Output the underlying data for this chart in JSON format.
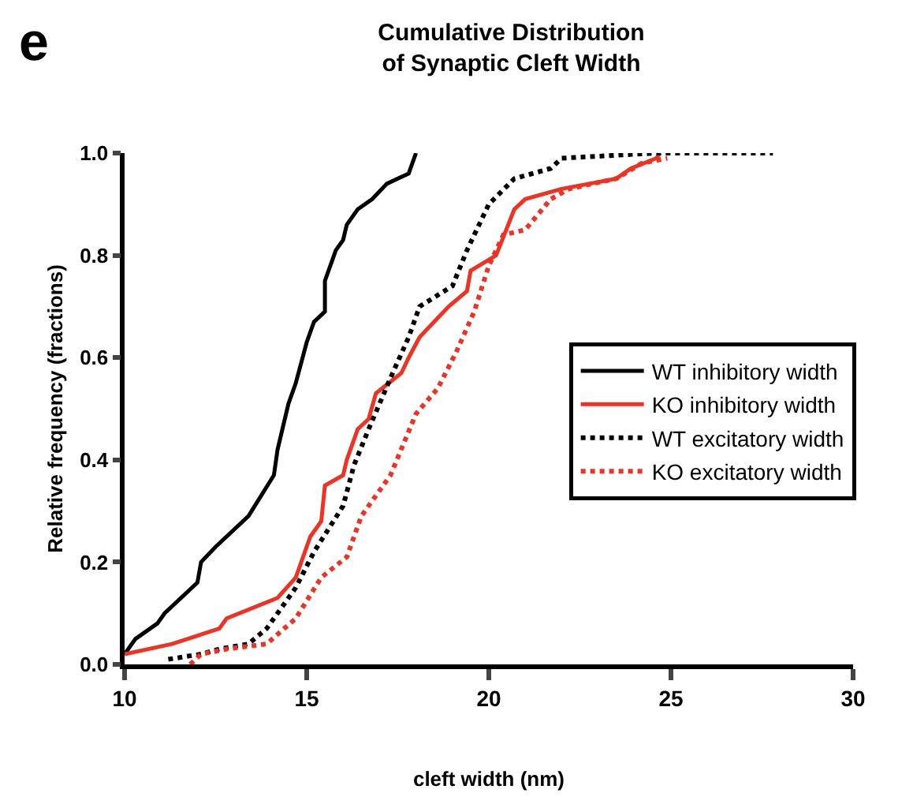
{
  "chart_data": {
    "type": "line",
    "title": "Cumulative Distribution\nof Synaptic Cleft Width",
    "xlabel": "cleft width (nm)",
    "ylabel": "Relative frequency (fractions)",
    "annotations": [
      "e"
    ],
    "xlim": [
      10,
      30
    ],
    "xticks": [
      10,
      15,
      20,
      25,
      30
    ],
    "ylim": [
      0,
      1.0
    ],
    "yticks": [
      {
        "value": 0,
        "label": "0.0"
      },
      {
        "value": 0.2,
        "label": "0.2"
      },
      {
        "value": 0.4,
        "label": "0.4"
      },
      {
        "value": 0.6,
        "label": "0.6"
      },
      {
        "value": 0.8,
        "label": "0.8"
      },
      {
        "value": 1.0,
        "label": "1.0"
      }
    ],
    "legend": "right",
    "marker": "none",
    "series": [
      {
        "name": "WT inhibitory width",
        "color": "#000000",
        "line_style": "solid",
        "x": [
          10.0,
          10.3,
          10.5,
          10.9,
          11.1,
          12.0,
          12.1,
          12.5,
          13.4,
          14.1,
          14.2,
          14.5,
          14.7,
          15.0,
          15.2,
          15.5,
          15.5,
          15.8,
          16.0,
          16.1,
          16.4,
          16.8,
          17.2,
          17.8,
          18.0
        ],
        "values": [
          0.02,
          0.05,
          0.06,
          0.08,
          0.1,
          0.16,
          0.2,
          0.23,
          0.29,
          0.37,
          0.42,
          0.51,
          0.55,
          0.63,
          0.67,
          0.69,
          0.75,
          0.81,
          0.83,
          0.86,
          0.89,
          0.91,
          0.94,
          0.96,
          1.0
        ]
      },
      {
        "name": "KO inhibitory width",
        "color": "#ee3224",
        "line_style": "solid",
        "x": [
          10.0,
          11.3,
          12.6,
          12.8,
          14.2,
          14.7,
          15.1,
          15.4,
          15.5,
          16.0,
          16.1,
          16.4,
          16.7,
          16.9,
          17.6,
          17.8,
          18.1,
          18.9,
          19.4,
          19.5,
          20.2,
          20.7,
          21.0,
          22.0,
          23.5,
          23.9,
          24.6,
          24.7
        ],
        "values": [
          0.02,
          0.04,
          0.07,
          0.09,
          0.13,
          0.17,
          0.25,
          0.28,
          0.35,
          0.37,
          0.4,
          0.46,
          0.48,
          0.53,
          0.57,
          0.6,
          0.64,
          0.7,
          0.73,
          0.77,
          0.8,
          0.89,
          0.91,
          0.93,
          0.95,
          0.97,
          0.99,
          1.0
        ]
      },
      {
        "name": "WT excitatory width",
        "color": "#000000",
        "line_style": "dotted",
        "x": [
          11.2,
          12.1,
          12.6,
          13.4,
          13.9,
          14.7,
          15.2,
          16.0,
          16.3,
          16.7,
          17.3,
          17.8,
          18.1,
          19.0,
          19.4,
          20.0,
          20.7,
          21.7,
          22.0,
          24.6,
          27.8
        ],
        "values": [
          0.01,
          0.02,
          0.03,
          0.04,
          0.07,
          0.15,
          0.22,
          0.31,
          0.39,
          0.46,
          0.56,
          0.64,
          0.7,
          0.74,
          0.81,
          0.9,
          0.95,
          0.97,
          0.99,
          1.0,
          1.0
        ]
      },
      {
        "name": "KO excitatory width",
        "color": "#ee3224",
        "line_style": "dotted",
        "x": [
          11.8,
          12.1,
          12.8,
          13.9,
          14.7,
          15.4,
          16.1,
          16.5,
          17.3,
          18.0,
          18.6,
          19.1,
          19.6,
          20.0,
          20.4,
          21.0,
          21.7,
          22.2,
          23.5,
          24.2,
          24.9
        ],
        "values": [
          0.0,
          0.02,
          0.03,
          0.04,
          0.09,
          0.17,
          0.21,
          0.29,
          0.37,
          0.49,
          0.54,
          0.61,
          0.69,
          0.78,
          0.84,
          0.85,
          0.91,
          0.93,
          0.95,
          0.98,
          0.99
        ]
      }
    ]
  }
}
